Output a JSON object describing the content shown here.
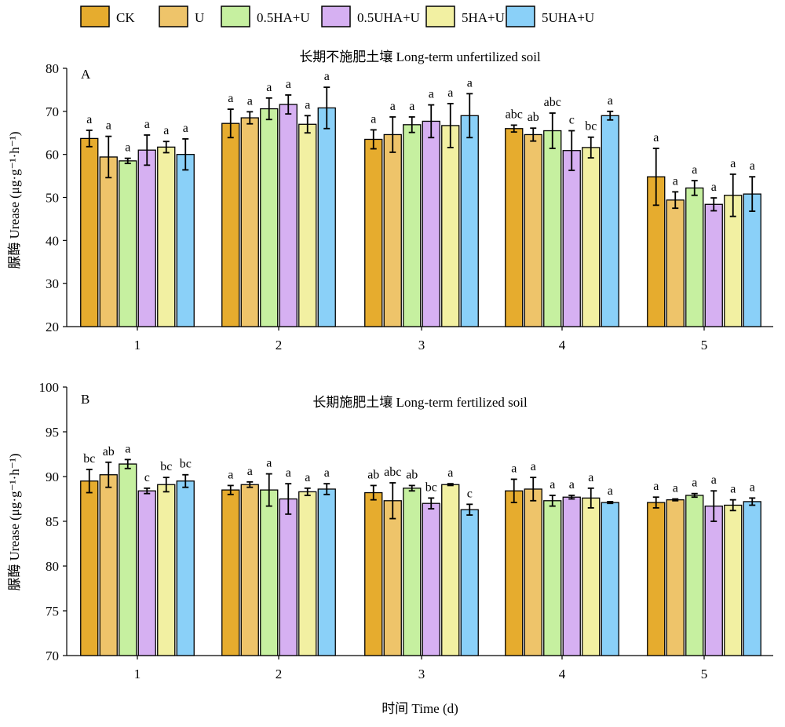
{
  "legend": [
    "CK",
    "U",
    "0.5HA+U",
    "0.5UHA+U",
    "5HA+U",
    "5UHA+U"
  ],
  "colors": [
    "#e6ac2e",
    "#eec46a",
    "#c6f0a0",
    "#d6b0f2",
    "#f2f0a2",
    "#8ad0f8"
  ],
  "xlabel": "时间 Time (d)",
  "chart_data": [
    {
      "type": "bar",
      "panel_label": "A",
      "title": "长期不施肥土壤 Long-term unfertilized soil",
      "ylabel": "脲酶 Urease (μg·g⁻¹·h⁻¹)",
      "ylim": [
        20,
        80
      ],
      "yticks": [
        20,
        30,
        40,
        50,
        60,
        70,
        80
      ],
      "categories": [
        "1",
        "2",
        "3",
        "4",
        "5"
      ],
      "series": [
        {
          "name": "CK",
          "values": [
            63.7,
            67.2,
            63.5,
            66.0,
            54.8
          ],
          "errors": [
            1.9,
            3.3,
            2.2,
            0.8,
            6.6
          ],
          "letters": [
            "a",
            "a",
            "a",
            "abc",
            "a"
          ]
        },
        {
          "name": "U",
          "values": [
            59.4,
            68.5,
            64.6,
            64.6,
            49.4
          ],
          "errors": [
            4.8,
            1.4,
            4.1,
            1.5,
            1.9
          ],
          "letters": [
            "a",
            "a",
            "a",
            "ab",
            "a"
          ]
        },
        {
          "name": "0.5HA+U",
          "values": [
            58.5,
            70.6,
            66.9,
            65.5,
            52.2
          ],
          "errors": [
            0.6,
            2.5,
            1.8,
            4.1,
            1.7
          ],
          "letters": [
            "a",
            "a",
            "a",
            "abc",
            "a"
          ]
        },
        {
          "name": "0.5UHA+U",
          "values": [
            61.0,
            71.6,
            67.7,
            60.9,
            48.4
          ],
          "errors": [
            3.5,
            2.2,
            3.8,
            4.6,
            1.5
          ],
          "letters": [
            "a",
            "a",
            "a",
            "c",
            "a"
          ]
        },
        {
          "name": "5HA+U",
          "values": [
            61.7,
            67.0,
            66.7,
            61.6,
            50.5
          ],
          "errors": [
            1.3,
            2.0,
            5.1,
            2.4,
            4.9
          ],
          "letters": [
            "a",
            "a",
            "a",
            "bc",
            "a"
          ]
        },
        {
          "name": "5UHA+U",
          "values": [
            60.0,
            70.8,
            69.0,
            69.0,
            50.8
          ],
          "errors": [
            3.6,
            4.8,
            5.1,
            1.0,
            4.0
          ],
          "letters": [
            "a",
            "a",
            "a",
            "a",
            "a"
          ]
        }
      ]
    },
    {
      "type": "bar",
      "panel_label": "B",
      "title": "长期施肥土壤 Long-term fertilized soil",
      "ylabel": "脲酶 Urease (μg·g⁻¹·h⁻¹)",
      "ylim": [
        70,
        100
      ],
      "yticks": [
        70,
        75,
        80,
        85,
        90,
        95,
        100
      ],
      "categories": [
        "1",
        "2",
        "3",
        "4",
        "5"
      ],
      "series": [
        {
          "name": "CK",
          "values": [
            89.5,
            88.5,
            88.2,
            88.4,
            87.1
          ],
          "errors": [
            1.3,
            0.5,
            0.8,
            1.3,
            0.6
          ],
          "letters": [
            "bc",
            "a",
            "ab",
            "a",
            "a"
          ]
        },
        {
          "name": "U",
          "values": [
            90.2,
            89.1,
            87.3,
            88.6,
            87.4
          ],
          "errors": [
            1.4,
            0.3,
            2.0,
            1.3,
            0.1
          ],
          "letters": [
            "ab",
            "a",
            "abc",
            "a",
            "a"
          ]
        },
        {
          "name": "0.5HA+U",
          "values": [
            91.4,
            88.5,
            88.7,
            87.3,
            87.9
          ],
          "errors": [
            0.5,
            1.8,
            0.3,
            0.6,
            0.2
          ],
          "letters": [
            "a",
            "a",
            "ab",
            "a",
            "a"
          ]
        },
        {
          "name": "0.5UHA+U",
          "values": [
            88.4,
            87.5,
            87.0,
            87.7,
            86.7
          ],
          "errors": [
            0.3,
            1.7,
            0.6,
            0.2,
            1.7
          ],
          "letters": [
            "c",
            "a",
            "bc",
            "a",
            "a"
          ]
        },
        {
          "name": "5HA+U",
          "values": [
            89.1,
            88.3,
            89.1,
            87.6,
            86.8
          ],
          "errors": [
            0.8,
            0.4,
            0.1,
            1.1,
            0.6
          ],
          "letters": [
            "bc",
            "a",
            "a",
            "a",
            "a"
          ]
        },
        {
          "name": "5UHA+U",
          "values": [
            89.5,
            88.6,
            86.3,
            87.1,
            87.2
          ],
          "errors": [
            0.7,
            0.6,
            0.6,
            0.1,
            0.4
          ],
          "letters": [
            "bc",
            "a",
            "c",
            "a",
            "a"
          ]
        }
      ]
    }
  ]
}
